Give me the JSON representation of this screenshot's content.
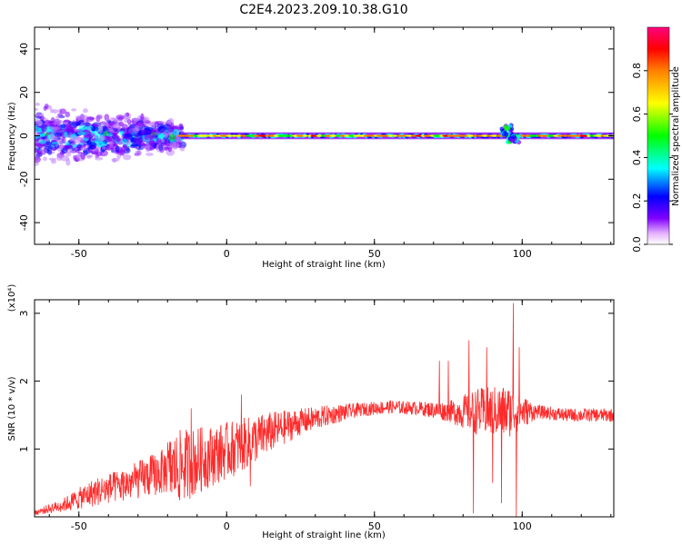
{
  "chart_data": [
    {
      "type": "heatmap",
      "title": "C2E4.2023.209.10.38.G10",
      "xlabel": "Height of straight line (km)",
      "ylabel": "Frequency (Hz)",
      "xlim": [
        -65,
        131
      ],
      "ylim": [
        -50,
        50
      ],
      "xticks": [
        -50,
        0,
        50,
        100
      ],
      "xtick_labels": [
        "-50",
        "0",
        "50",
        "100"
      ],
      "yticks": [
        -40,
        -20,
        0,
        20,
        40
      ],
      "ytick_labels": [
        "-40",
        "-20",
        "0",
        "20",
        "40"
      ],
      "grid": false,
      "colormap": {
        "label": "Normalized spectral amplitude",
        "range": [
          0,
          1
        ],
        "ticks": [
          0.0,
          0.2,
          0.4,
          0.6,
          0.8
        ],
        "tick_labels": [
          "0.0",
          "0.2",
          "0.4",
          "0.6",
          "0.8"
        ],
        "colors": [
          "#ffffff",
          "#c080ff",
          "#8000ff",
          "#0000ff",
          "#00ffff",
          "#00ff00",
          "#ffff00",
          "#ff8000",
          "#ff0000",
          "#ff0080"
        ]
      },
      "band": {
        "center_freq": 0,
        "segments": [
          {
            "x_range": [
              -65,
              -15
            ],
            "freq_halfwidth": 7,
            "amplitude": 0.35,
            "style": "scattered"
          },
          {
            "x_range": [
              -15,
              131
            ],
            "freq_halfwidth": 2,
            "amplitude": 0.85,
            "style": "narrow"
          }
        ],
        "features": [
          {
            "x": 95,
            "freq_offset": 5,
            "amplitude": 0.4
          },
          {
            "x": 97,
            "freq_offset": -3,
            "amplitude": 0.4
          }
        ]
      }
    },
    {
      "type": "line",
      "xlabel": "Height of straight line (km)",
      "ylabel": "SNR (10 * v/v)",
      "y_multiplier": "(x10⁴)",
      "xlim": [
        -65,
        131
      ],
      "ylim": [
        0,
        3.2
      ],
      "xticks": [
        -50,
        0,
        50,
        100
      ],
      "xtick_labels": [
        "-50",
        "0",
        "50",
        "100"
      ],
      "yticks": [
        1,
        2,
        3
      ],
      "ytick_labels": [
        "1",
        "2",
        "3"
      ],
      "grid": false,
      "color": "#ff2a2a",
      "envelope": {
        "x": [
          -65,
          -55,
          -45,
          -35,
          -25,
          -15,
          -5,
          5,
          15,
          25,
          35,
          45,
          55,
          65,
          75,
          85,
          95,
          105,
          115,
          125,
          131
        ],
        "mean": [
          0.05,
          0.15,
          0.3,
          0.45,
          0.6,
          0.75,
          0.9,
          1.05,
          1.25,
          1.4,
          1.5,
          1.58,
          1.62,
          1.6,
          1.55,
          1.55,
          1.55,
          1.55,
          1.5,
          1.5,
          1.5
        ],
        "amplitude": [
          0.05,
          0.15,
          0.3,
          0.35,
          0.45,
          0.55,
          0.45,
          0.4,
          0.3,
          0.2,
          0.15,
          0.1,
          0.1,
          0.1,
          0.15,
          0.35,
          0.4,
          0.1,
          0.1,
          0.1,
          0.1
        ]
      },
      "peaks": [
        {
          "x": 82,
          "y": 2.6
        },
        {
          "x": 83.5,
          "y": 0.05
        },
        {
          "x": 88,
          "y": 2.5
        },
        {
          "x": 90,
          "y": 0.5
        },
        {
          "x": 93,
          "y": 0.2
        },
        {
          "x": 97,
          "y": 3.15
        },
        {
          "x": 98,
          "y": 0.0
        },
        {
          "x": 99,
          "y": 2.5
        },
        {
          "x": 72,
          "y": 2.3
        },
        {
          "x": 75,
          "y": 2.3
        },
        {
          "x": 8,
          "y": 0.45
        },
        {
          "x": -12,
          "y": 1.6
        },
        {
          "x": 5,
          "y": 1.8
        }
      ]
    }
  ]
}
